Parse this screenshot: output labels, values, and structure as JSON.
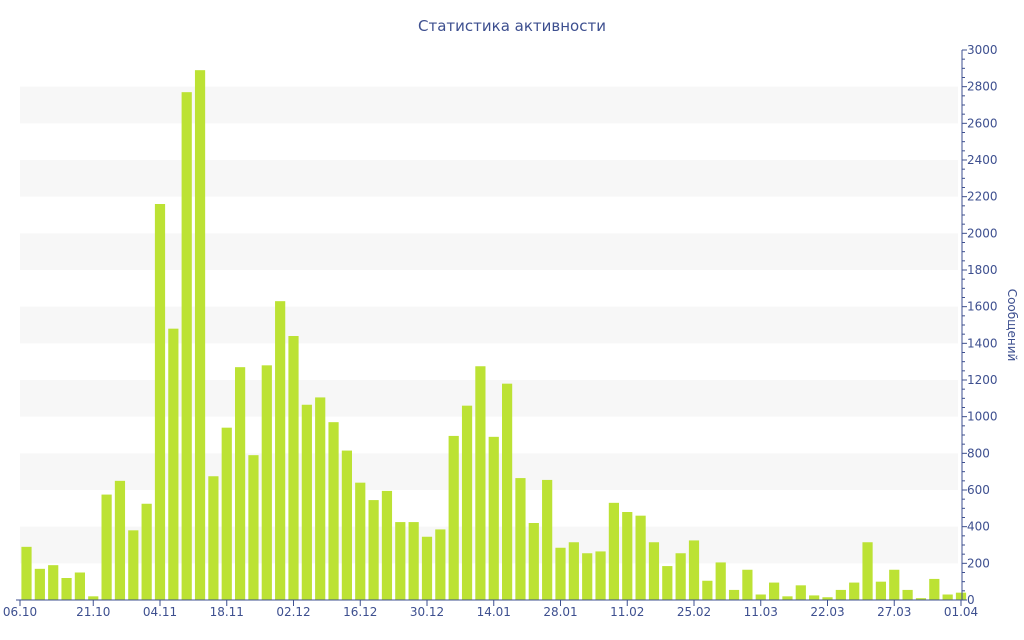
{
  "colors": {
    "bar": "#bce234",
    "band": "#f7f7f7",
    "axis": "#3d4f8f",
    "text": "#3d4f8f"
  },
  "chart_data": {
    "type": "bar",
    "title": "Статистика активности",
    "xlabel": "",
    "ylabel": "Сообщений",
    "y_axis_side": "right",
    "ylim": [
      0,
      3000
    ],
    "y_ticks": [
      0,
      200,
      400,
      600,
      800,
      1000,
      1200,
      1400,
      1600,
      1800,
      2000,
      2200,
      2400,
      2600,
      2800,
      3000
    ],
    "grid": "alternating horizontal bands",
    "legend": "none",
    "x_tick_labels": [
      {
        "label": "06.10",
        "index": 0
      },
      {
        "label": "21.10",
        "index": 5
      },
      {
        "label": "04.11",
        "index": 10
      },
      {
        "label": "18.11",
        "index": 15
      },
      {
        "label": "02.12",
        "index": 20
      },
      {
        "label": "16.12",
        "index": 25
      },
      {
        "label": "30.12",
        "index": 30
      },
      {
        "label": "14.01",
        "index": 35
      },
      {
        "label": "28.01",
        "index": 40
      },
      {
        "label": "11.02",
        "index": 45
      },
      {
        "label": "25.02",
        "index": 50
      },
      {
        "label": "11.03",
        "index": 55
      },
      {
        "label": "22.03",
        "index": 60
      },
      {
        "label": "27.03",
        "index": 65
      },
      {
        "label": "01.04",
        "index": 70
      }
    ],
    "values": [
      290,
      170,
      190,
      120,
      150,
      20,
      575,
      650,
      380,
      525,
      2160,
      1480,
      2770,
      2890,
      675,
      940,
      1270,
      790,
      1280,
      1630,
      1440,
      1065,
      1105,
      970,
      815,
      640,
      545,
      595,
      425,
      425,
      345,
      385,
      895,
      1060,
      1275,
      890,
      1180,
      665,
      420,
      655,
      285,
      315,
      255,
      265,
      530,
      480,
      460,
      315,
      185,
      255,
      325,
      105,
      205,
      55,
      165,
      30,
      95,
      20,
      80,
      25,
      15,
      55,
      95,
      315,
      100,
      165,
      55,
      10,
      115,
      30,
      40
    ]
  }
}
